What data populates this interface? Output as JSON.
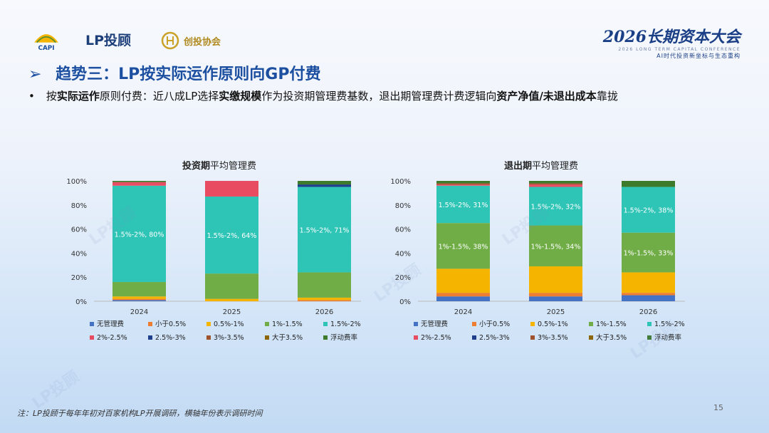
{
  "header": {
    "logo_capi": "CAPI",
    "logo_lp": "LP投顾",
    "logo_cx": "创投协会",
    "brand_main": "2026长期资本大会",
    "brand_en": "2026 LONG TERM CAPITAL CONFERENCE",
    "brand_sub": "AI时代投资新坐标与生态重构"
  },
  "title": {
    "prefix": "趋势三：",
    "text": "LP按实际运作原则向GP付费"
  },
  "bullet": {
    "t1": "按",
    "b1": "实际运作",
    "t2": "原则付费：近八成LP选择",
    "b2": "实缴规模",
    "t3": "作为投资期管理费基数，退出期管理费计费逻辑向",
    "b3": "资产净值/未退出成本",
    "t4": "靠拢"
  },
  "footnote": "注：LP投顾于每年年初对百家机构LP开展调研，横轴年份表示调研时间",
  "page_number": "15",
  "watermark": "LP投顾",
  "colors": {
    "无管理费": "#4472c4",
    "小于0.5%": "#ed7d31",
    "0.5%-1%": "#f4b400",
    "1%-1.5%": "#70ad47",
    "1.5%-2%": "#2ec4b6",
    "2%-2.5%": "#e84c61",
    "2.5%-3%": "#1f3f8c",
    "3%-3.5%": "#a0522d",
    "大于3.5%": "#8b6508",
    "浮动费率": "#3d7a2b"
  },
  "chart_data": [
    {
      "type": "bar",
      "stacked": true,
      "title_bold": "投资期",
      "title_rest": "平均管理费",
      "categories": [
        "2024",
        "2025",
        "2026"
      ],
      "yticks": [
        "0%",
        "20%",
        "40%",
        "60%",
        "80%",
        "100%"
      ],
      "ylim": [
        0,
        100
      ],
      "legend": [
        "无管理费",
        "小于0.5%",
        "0.5%-1%",
        "1%-1.5%",
        "1.5%-2%",
        "2%-2.5%",
        "2.5%-3%",
        "3%-3.5%",
        "大于3.5%",
        "浮动费率"
      ],
      "series": [
        {
          "name": "无管理费",
          "values": [
            1,
            0,
            0
          ]
        },
        {
          "name": "小于0.5%",
          "values": [
            1,
            0,
            1
          ]
        },
        {
          "name": "0.5%-1%",
          "values": [
            2,
            2,
            2
          ]
        },
        {
          "name": "1%-1.5%",
          "values": [
            12,
            21,
            21
          ]
        },
        {
          "name": "1.5%-2%",
          "values": [
            80,
            64,
            71
          ]
        },
        {
          "name": "2%-2.5%",
          "values": [
            3,
            13,
            0
          ]
        },
        {
          "name": "2.5%-3%",
          "values": [
            0,
            0,
            2
          ]
        },
        {
          "name": "3%-3.5%",
          "values": [
            0,
            0,
            0
          ]
        },
        {
          "name": "大于3.5%",
          "values": [
            0,
            0,
            0
          ]
        },
        {
          "name": "浮动费率",
          "values": [
            1,
            0,
            3
          ]
        }
      ],
      "data_labels": [
        "1.5%-2%, 80%",
        "1.5%-2%, 64%",
        "1.5%-2%, 71%"
      ]
    },
    {
      "type": "bar",
      "stacked": true,
      "title_bold": "退出期",
      "title_rest": "平均管理费",
      "categories": [
        "2024",
        "2025",
        "2026"
      ],
      "yticks": [
        "0%",
        "20%",
        "40%",
        "60%",
        "80%",
        "100%"
      ],
      "ylim": [
        0,
        100
      ],
      "legend": [
        "无管理费",
        "小于0.5%",
        "0.5%-1%",
        "1%-1.5%",
        "1.5%-2%",
        "2%-2.5%",
        "2.5%-3%",
        "3%-3.5%",
        "大于3.5%",
        "浮动费率"
      ],
      "series": [
        {
          "name": "无管理费",
          "values": [
            4,
            4,
            5
          ]
        },
        {
          "name": "小于0.5%",
          "values": [
            3,
            3,
            2
          ]
        },
        {
          "name": "0.5%-1%",
          "values": [
            20,
            22,
            17
          ]
        },
        {
          "name": "1%-1.5%",
          "values": [
            38,
            34,
            33
          ]
        },
        {
          "name": "1.5%-2%",
          "values": [
            31,
            32,
            38
          ]
        },
        {
          "name": "2%-2.5%",
          "values": [
            1,
            2,
            0
          ]
        },
        {
          "name": "2.5%-3%",
          "values": [
            0,
            0,
            0
          ]
        },
        {
          "name": "3%-3.5%",
          "values": [
            1,
            1,
            0
          ]
        },
        {
          "name": "大于3.5%",
          "values": [
            0,
            0,
            0
          ]
        },
        {
          "name": "浮动费率",
          "values": [
            2,
            2,
            5
          ]
        }
      ],
      "data_labels_mid": [
        "1%-1.5%, 38%",
        "1%-1.5%, 34%",
        "1%-1.5%, 33%"
      ],
      "data_labels_top": [
        "1.5%-2%, 31%",
        "1.5%-2%, 32%",
        "1.5%-2%, 38%"
      ]
    }
  ]
}
